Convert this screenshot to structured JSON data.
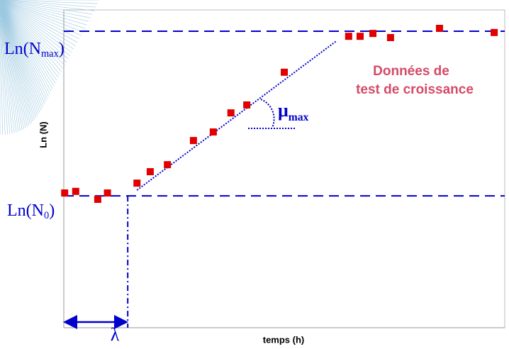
{
  "chart_data": {
    "type": "scatter",
    "x_label": "temps (h)",
    "y_label": "Ln (N)",
    "note": [
      "Données de",
      "test de croissance"
    ],
    "xlim": [
      0,
      100
    ],
    "ylim": [
      0,
      100
    ],
    "series": [
      {
        "color": "#e00000",
        "x": [
          0.2,
          2.7,
          7.7,
          9.9,
          16.6,
          19.6,
          23.5,
          29.4,
          33.9,
          37.9,
          41.5,
          50.0,
          64.6,
          67.2,
          70.1,
          74.1,
          85.2,
          97.6
        ],
        "values": [
          42.4,
          42.9,
          40.4,
          42.4,
          45.5,
          49.1,
          51.3,
          58.9,
          61.6,
          67.6,
          70.1,
          80.4,
          91.7,
          91.7,
          92.6,
          91.3,
          94.2,
          92.9
        ]
      }
    ],
    "line_color": "#0000cc",
    "n0": {
      "value": 41.5,
      "text": "Ln(N",
      "sub": "0",
      "end": ")"
    },
    "nmax": {
      "value": 93.3,
      "text": "Ln(N",
      "sub": "max",
      "end": ")"
    },
    "lag": {
      "value": 14.5,
      "label": "λ"
    },
    "slope": {
      "x": [
        16.6,
        61.8
      ],
      "values": [
        43.3,
        90.2
      ],
      "text": "μ",
      "sub": "max"
    }
  }
}
